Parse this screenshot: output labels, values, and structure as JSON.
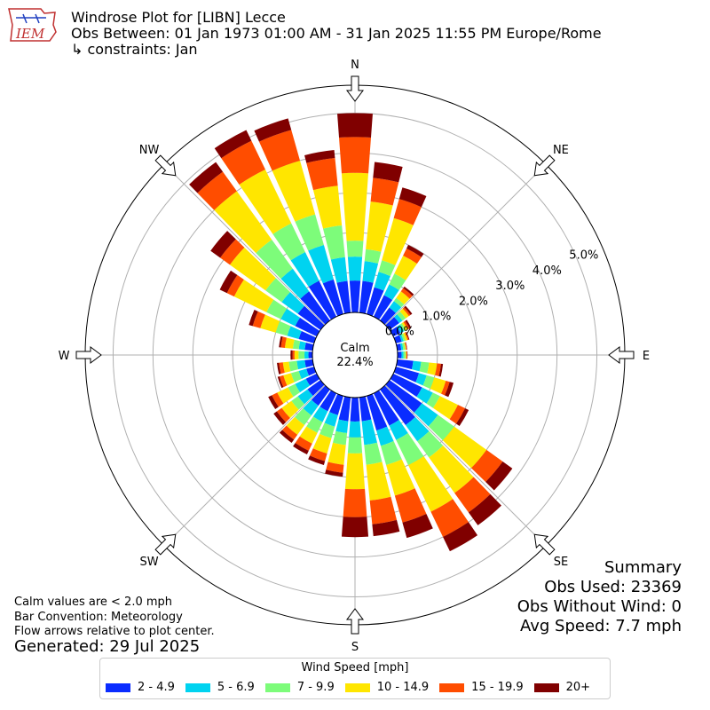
{
  "title": {
    "line1": "Windrose Plot for [LIBN] Lecce",
    "line2": "Obs Between: 01 Jan 1973 01:00 AM - 31 Jan 2025 11:55 PM Europe/Rome",
    "line3": "↳ constraints: Jan"
  },
  "logo_text": "IEM",
  "notes": {
    "calm": "Calm values are < 2.0 mph",
    "bar_convention": "Bar Convention: Meteorology",
    "flow": "Flow arrows relative to plot center.",
    "generated": "Generated: 29 Jul 2025"
  },
  "summary": {
    "heading": "Summary",
    "obs_used": "Obs Used: 23369",
    "obs_without_wind": "Obs Without Wind: 0",
    "avg_speed": "Avg Speed: 7.7 mph"
  },
  "center": {
    "label": "Calm",
    "value": "22.4%"
  },
  "legend_title": "Wind Speed [mph]",
  "chart_data": {
    "type": "windrose",
    "title": "Windrose Plot for [LIBN] Lecce",
    "direction_labels": [
      "N",
      "NE",
      "E",
      "SE",
      "S",
      "SW",
      "W",
      "NW"
    ],
    "radial_tick_labels": [
      "0.0%",
      "1.0%",
      "2.0%",
      "3.0%",
      "4.0%",
      "5.0%"
    ],
    "radial_ticks": [
      0,
      1,
      2,
      3,
      4,
      5
    ],
    "rmax": 5.7,
    "calm_percent": 22.4,
    "speed_bins": [
      "2 - 4.9",
      "5 - 6.9",
      "7 - 9.9",
      "10 - 14.9",
      "15 - 19.9",
      "20+"
    ],
    "colors": [
      "#0a2cff",
      "#00d3f0",
      "#7dfc7a",
      "#ffe600",
      "#ff4d00",
      "#800000"
    ],
    "directions_deg": [
      0,
      10,
      20,
      30,
      40,
      50,
      60,
      70,
      80,
      90,
      100,
      110,
      120,
      130,
      140,
      150,
      160,
      170,
      180,
      190,
      200,
      210,
      220,
      230,
      240,
      250,
      260,
      270,
      280,
      290,
      300,
      310,
      320,
      330,
      340,
      350
    ],
    "cumulative_percent": [
      [
        0.8,
        1.4,
        1.8,
        3.5,
        4.4,
        5.0
      ],
      [
        0.8,
        1.3,
        1.6,
        2.8,
        3.4,
        3.8
      ],
      [
        0.7,
        1.1,
        1.4,
        2.5,
        3.0,
        3.3
      ],
      [
        0.6,
        0.9,
        1.2,
        1.7,
        1.9,
        2.0
      ],
      [
        0.4,
        0.6,
        0.7,
        0.9,
        1.0,
        1.05
      ],
      [
        0.3,
        0.4,
        0.5,
        0.6,
        0.65,
        0.7
      ],
      [
        0.2,
        0.3,
        0.35,
        0.4,
        0.45,
        0.5
      ],
      [
        0.15,
        0.2,
        0.25,
        0.3,
        0.33,
        0.35
      ],
      [
        0.1,
        0.15,
        0.2,
        0.22,
        0.24,
        0.25
      ],
      [
        0.1,
        0.15,
        0.2,
        0.22,
        0.24,
        0.25
      ],
      [
        0.4,
        0.6,
        0.8,
        1.0,
        1.1,
        1.15
      ],
      [
        0.6,
        0.8,
        1.0,
        1.3,
        1.4,
        1.5
      ],
      [
        0.8,
        1.1,
        1.3,
        1.8,
        2.0,
        2.1
      ],
      [
        1.0,
        1.5,
        2.0,
        3.0,
        3.5,
        3.8
      ],
      [
        1.1,
        1.6,
        2.1,
        3.2,
        3.8,
        4.2
      ],
      [
        0.9,
        1.3,
        2.0,
        3.3,
        4.0,
        4.4
      ],
      [
        0.9,
        1.3,
        1.8,
        2.6,
        3.3,
        3.7
      ],
      [
        0.6,
        1.2,
        1.7,
        2.6,
        3.2,
        3.5
      ],
      [
        0.6,
        1.0,
        1.4,
        2.3,
        3.0,
        3.5
      ],
      [
        0.6,
        0.9,
        1.2,
        1.7,
        1.9,
        2.0
      ],
      [
        0.5,
        0.8,
        1.1,
        1.5,
        1.7,
        1.8
      ],
      [
        0.5,
        0.8,
        1.1,
        1.4,
        1.6,
        1.7
      ],
      [
        0.5,
        0.8,
        1.1,
        1.4,
        1.55,
        1.65
      ],
      [
        0.4,
        0.7,
        0.9,
        1.2,
        1.35,
        1.45
      ],
      [
        0.3,
        0.6,
        0.8,
        1.1,
        1.25,
        1.35
      ],
      [
        0.2,
        0.4,
        0.6,
        0.8,
        0.9,
        0.95
      ],
      [
        0.2,
        0.4,
        0.6,
        0.75,
        0.85,
        0.9
      ],
      [
        0.1,
        0.2,
        0.35,
        0.45,
        0.5,
        0.55
      ],
      [
        0.2,
        0.35,
        0.5,
        0.7,
        0.8,
        0.85
      ],
      [
        0.4,
        0.7,
        1.0,
        1.4,
        1.6,
        1.7
      ],
      [
        0.6,
        1.0,
        1.4,
        2.3,
        2.5,
        2.7
      ],
      [
        0.7,
        1.2,
        1.7,
        2.8,
        3.1,
        3.4
      ],
      [
        0.9,
        1.6,
        2.5,
        4.0,
        4.6,
        4.9
      ],
      [
        1.0,
        1.8,
        2.6,
        4.1,
        4.9,
        5.2
      ],
      [
        0.9,
        1.8,
        2.6,
        4.0,
        4.8,
        5.1
      ],
      [
        0.8,
        1.4,
        2.2,
        3.2,
        3.9,
        4.1
      ]
    ]
  }
}
